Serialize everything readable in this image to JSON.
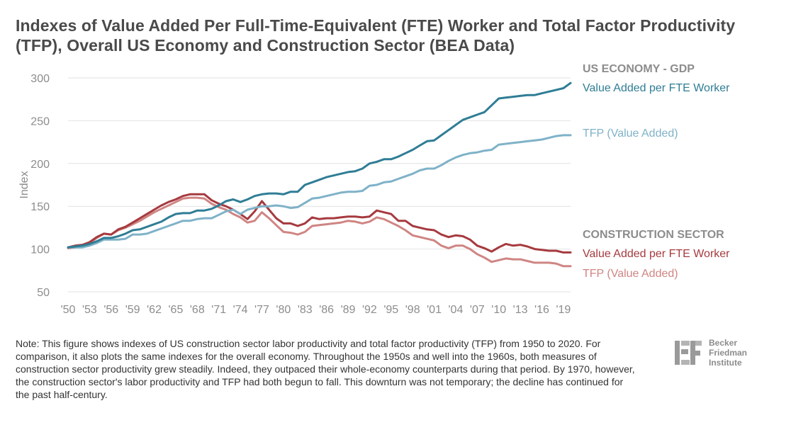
{
  "title": "Indexes of Value Added Per Full-Time-Equivalent (FTE) Worker and Total Factor Productivity (TFP), Overall US Economy and Construction Sector (BEA Data)",
  "note": "Note: This figure shows indexes of US construction sector labor productivity and total factor productivity (TFP) from 1950 to 2020. For comparison, it also plots the same indexes for the overall economy. Throughout the 1950s and well into the 1960s, both measures of construction sector productivity grew steadily. Indeed, they outpaced their whole-economy counterparts during that period. By 1970, however, the construction sector's labor productivity and TFP had both begun to fall. This downturn was not temporary; the decline has continued for the past half-century.",
  "logo": {
    "line1": "Becker",
    "line2": "Friedman",
    "line3": "Institute"
  },
  "colors": {
    "us_value_added": "#2f7d95",
    "us_tfp": "#7fb2c8",
    "construction_value_added": "#a63a3f",
    "construction_tfp": "#cf8583",
    "group_heading": "#8c8c8c",
    "axis_text": "#8c8c8c",
    "grid": "#e2e2e2"
  },
  "chart_data": {
    "type": "line",
    "title": "Indexes of Value Added Per Full-Time-Equivalent (FTE) Worker and Total Factor Productivity (TFP), Overall US Economy and Construction Sector (BEA Data)",
    "xlabel": "",
    "ylabel": "Index",
    "ylim": [
      50,
      300
    ],
    "yticks": [
      50,
      100,
      150,
      200,
      250,
      300
    ],
    "xlim": [
      1950,
      2020
    ],
    "xticks": [
      1950,
      1953,
      1956,
      1959,
      1962,
      1965,
      1968,
      1971,
      1974,
      1977,
      1980,
      1983,
      1986,
      1989,
      1992,
      1995,
      1998,
      2001,
      2004,
      2007,
      2010,
      2013,
      2016,
      2019
    ],
    "xtick_labels": [
      "'50",
      "'53",
      "'56",
      "'59",
      "'62",
      "'65",
      "'68",
      "'71",
      "'74",
      "'77",
      "'80",
      "'83",
      "'86",
      "'89",
      "'92",
      "'95",
      "'98",
      "'01",
      "'04",
      "'07",
      "'10",
      "'13",
      "'16",
      "'19"
    ],
    "grid": "horizontal",
    "legend": "right",
    "x": [
      1950,
      1951,
      1952,
      1953,
      1954,
      1955,
      1956,
      1957,
      1958,
      1959,
      1960,
      1961,
      1962,
      1963,
      1964,
      1965,
      1966,
      1967,
      1968,
      1969,
      1970,
      1971,
      1972,
      1973,
      1974,
      1975,
      1976,
      1977,
      1978,
      1979,
      1980,
      1981,
      1982,
      1983,
      1984,
      1985,
      1986,
      1987,
      1988,
      1989,
      1990,
      1991,
      1992,
      1993,
      1994,
      1995,
      1996,
      1997,
      1998,
      1999,
      2000,
      2001,
      2002,
      2003,
      2004,
      2005,
      2006,
      2007,
      2008,
      2009,
      2010,
      2011,
      2012,
      2013,
      2014,
      2015,
      2016,
      2017,
      2018,
      2019,
      2020
    ],
    "groups": [
      {
        "heading": "US ECONOMY - GDP",
        "series_indices": [
          0,
          1
        ]
      },
      {
        "heading": "CONSTRUCTION SECTOR",
        "series_indices": [
          2,
          3
        ]
      }
    ],
    "series": [
      {
        "name": "Value Added per FTE Worker",
        "group": "US ECONOMY - GDP",
        "color": "#2f7d95",
        "values": [
          102,
          103,
          104,
          106,
          109,
          113,
          113,
          115,
          118,
          122,
          123,
          126,
          129,
          132,
          137,
          141,
          142,
          142,
          145,
          145,
          147,
          151,
          156,
          158,
          155,
          158,
          162,
          164,
          165,
          165,
          164,
          167,
          167,
          175,
          178,
          181,
          184,
          186,
          188,
          190,
          191,
          194,
          200,
          202,
          205,
          205,
          208,
          212,
          216,
          221,
          226,
          227,
          233,
          239,
          245,
          251,
          254,
          257,
          260,
          268,
          276,
          277,
          278,
          279,
          280,
          280,
          282,
          284,
          286,
          288,
          294
        ]
      },
      {
        "name": "TFP (Value Added)",
        "group": "US ECONOMY - GDP",
        "color": "#7fb2c8",
        "values": [
          102,
          102,
          102,
          104,
          107,
          111,
          111,
          111,
          112,
          117,
          117,
          118,
          121,
          124,
          127,
          130,
          133,
          133,
          135,
          136,
          136,
          140,
          144,
          146,
          141,
          146,
          148,
          150,
          150,
          151,
          150,
          148,
          149,
          154,
          159,
          160,
          162,
          164,
          166,
          167,
          167,
          168,
          174,
          175,
          178,
          179,
          182,
          185,
          188,
          192,
          194,
          194,
          198,
          203,
          207,
          210,
          212,
          213,
          215,
          216,
          222,
          223,
          224,
          225,
          226,
          227,
          228,
          230,
          232,
          233,
          233
        ]
      },
      {
        "name": "Value Added per FTE Worker",
        "group": "CONSTRUCTION SECTOR",
        "color": "#a63a3f",
        "values": [
          102,
          104,
          105,
          108,
          114,
          118,
          117,
          123,
          126,
          131,
          136,
          141,
          146,
          151,
          155,
          158,
          162,
          164,
          164,
          164,
          157,
          153,
          150,
          146,
          141,
          135,
          144,
          156,
          146,
          136,
          130,
          130,
          127,
          130,
          137,
          135,
          136,
          136,
          137,
          138,
          138,
          137,
          138,
          145,
          143,
          141,
          133,
          133,
          127,
          125,
          123,
          122,
          117,
          114,
          116,
          115,
          111,
          104,
          101,
          97,
          102,
          106,
          104,
          105,
          103,
          100,
          99,
          98,
          98,
          96,
          96
        ]
      },
      {
        "name": "TFP (Value Added)",
        "group": "CONSTRUCTION SECTOR",
        "color": "#cf8583",
        "values": [
          101,
          102,
          103,
          107,
          113,
          118,
          117,
          122,
          125,
          129,
          133,
          138,
          143,
          147,
          151,
          155,
          159,
          160,
          160,
          159,
          153,
          149,
          146,
          141,
          137,
          131,
          133,
          143,
          136,
          128,
          120,
          119,
          117,
          120,
          127,
          128,
          129,
          130,
          131,
          133,
          132,
          130,
          132,
          137,
          135,
          131,
          127,
          122,
          116,
          114,
          112,
          110,
          104,
          101,
          104,
          104,
          100,
          94,
          90,
          85,
          87,
          89,
          88,
          88,
          86,
          84,
          84,
          84,
          83,
          80,
          80
        ]
      }
    ]
  }
}
